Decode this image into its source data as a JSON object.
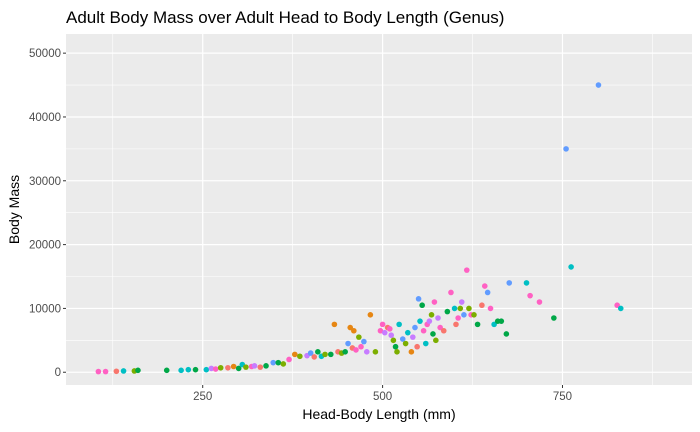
{
  "chart_data": {
    "type": "scatter",
    "title": "Adult Body Mass over Adult Head to Body Length (Genus)",
    "xlabel": "Head-Body Length (mm)",
    "ylabel": "Body Mass",
    "xlim": [
      60,
      930
    ],
    "ylim": [
      -2000,
      53000
    ],
    "xticks": [
      250,
      500,
      750
    ],
    "xtick_labels": [
      "250",
      "500",
      "750"
    ],
    "yticks": [
      0,
      10000,
      20000,
      30000,
      40000,
      50000
    ],
    "ytick_labels": [
      "0",
      "10000",
      "20000",
      "30000",
      "40000",
      "50000"
    ],
    "grid": true,
    "legend": "none",
    "colors": {
      "panel_bg": "#ebebeb",
      "grid_major": "#ffffff",
      "red": "#f8766d",
      "orange": "#e68613",
      "olive": "#7cae00",
      "green": "#00a747",
      "teal": "#00bfc4",
      "blue": "#619cff",
      "purple": "#c77cff",
      "pink": "#ff61c3"
    },
    "points": [
      {
        "x": 105,
        "y": 100,
        "c": "pink"
      },
      {
        "x": 115,
        "y": 100,
        "c": "pink"
      },
      {
        "x": 130,
        "y": 150,
        "c": "red"
      },
      {
        "x": 140,
        "y": 200,
        "c": "teal"
      },
      {
        "x": 155,
        "y": 200,
        "c": "olive"
      },
      {
        "x": 160,
        "y": 300,
        "c": "green"
      },
      {
        "x": 200,
        "y": 300,
        "c": "green"
      },
      {
        "x": 220,
        "y": 300,
        "c": "teal"
      },
      {
        "x": 230,
        "y": 400,
        "c": "teal"
      },
      {
        "x": 240,
        "y": 400,
        "c": "green"
      },
      {
        "x": 255,
        "y": 400,
        "c": "teal"
      },
      {
        "x": 262,
        "y": 600,
        "c": "purple"
      },
      {
        "x": 268,
        "y": 500,
        "c": "pink"
      },
      {
        "x": 275,
        "y": 700,
        "c": "olive"
      },
      {
        "x": 285,
        "y": 700,
        "c": "red"
      },
      {
        "x": 293,
        "y": 900,
        "c": "orange"
      },
      {
        "x": 300,
        "y": 600,
        "c": "green"
      },
      {
        "x": 305,
        "y": 1200,
        "c": "teal"
      },
      {
        "x": 310,
        "y": 800,
        "c": "olive"
      },
      {
        "x": 318,
        "y": 900,
        "c": "pink"
      },
      {
        "x": 322,
        "y": 1000,
        "c": "purple"
      },
      {
        "x": 330,
        "y": 800,
        "c": "red"
      },
      {
        "x": 338,
        "y": 1000,
        "c": "green"
      },
      {
        "x": 348,
        "y": 1500,
        "c": "blue"
      },
      {
        "x": 355,
        "y": 1500,
        "c": "green"
      },
      {
        "x": 362,
        "y": 1300,
        "c": "olive"
      },
      {
        "x": 370,
        "y": 2000,
        "c": "pink"
      },
      {
        "x": 378,
        "y": 2800,
        "c": "orange"
      },
      {
        "x": 385,
        "y": 2500,
        "c": "olive"
      },
      {
        "x": 395,
        "y": 2600,
        "c": "purple"
      },
      {
        "x": 400,
        "y": 3000,
        "c": "blue"
      },
      {
        "x": 405,
        "y": 2400,
        "c": "red"
      },
      {
        "x": 410,
        "y": 3200,
        "c": "green"
      },
      {
        "x": 415,
        "y": 2500,
        "c": "teal"
      },
      {
        "x": 420,
        "y": 2800,
        "c": "olive"
      },
      {
        "x": 428,
        "y": 2800,
        "c": "green"
      },
      {
        "x": 433,
        "y": 7500,
        "c": "orange"
      },
      {
        "x": 438,
        "y": 3200,
        "c": "red"
      },
      {
        "x": 443,
        "y": 3000,
        "c": "olive"
      },
      {
        "x": 448,
        "y": 3200,
        "c": "green"
      },
      {
        "x": 452,
        "y": 4500,
        "c": "blue"
      },
      {
        "x": 455,
        "y": 7000,
        "c": "orange"
      },
      {
        "x": 458,
        "y": 3800,
        "c": "red"
      },
      {
        "x": 460,
        "y": 6500,
        "c": "orange"
      },
      {
        "x": 463,
        "y": 3500,
        "c": "pink"
      },
      {
        "x": 467,
        "y": 5500,
        "c": "olive"
      },
      {
        "x": 470,
        "y": 4000,
        "c": "pink"
      },
      {
        "x": 474,
        "y": 4800,
        "c": "blue"
      },
      {
        "x": 478,
        "y": 3200,
        "c": "purple"
      },
      {
        "x": 483,
        "y": 9000,
        "c": "orange"
      },
      {
        "x": 490,
        "y": 3200,
        "c": "olive"
      },
      {
        "x": 497,
        "y": 6500,
        "c": "pink"
      },
      {
        "x": 500,
        "y": 7500,
        "c": "pink"
      },
      {
        "x": 503,
        "y": 6200,
        "c": "purple"
      },
      {
        "x": 507,
        "y": 7000,
        "c": "red"
      },
      {
        "x": 510,
        "y": 6800,
        "c": "pink"
      },
      {
        "x": 512,
        "y": 5800,
        "c": "purple"
      },
      {
        "x": 515,
        "y": 5000,
        "c": "olive"
      },
      {
        "x": 518,
        "y": 4000,
        "c": "green"
      },
      {
        "x": 520,
        "y": 3200,
        "c": "olive"
      },
      {
        "x": 523,
        "y": 7500,
        "c": "teal"
      },
      {
        "x": 528,
        "y": 5200,
        "c": "blue"
      },
      {
        "x": 532,
        "y": 4500,
        "c": "olive"
      },
      {
        "x": 535,
        "y": 6200,
        "c": "teal"
      },
      {
        "x": 540,
        "y": 3200,
        "c": "orange"
      },
      {
        "x": 542,
        "y": 5500,
        "c": "purple"
      },
      {
        "x": 545,
        "y": 7000,
        "c": "blue"
      },
      {
        "x": 548,
        "y": 4000,
        "c": "red"
      },
      {
        "x": 550,
        "y": 11500,
        "c": "blue"
      },
      {
        "x": 552,
        "y": 8000,
        "c": "teal"
      },
      {
        "x": 555,
        "y": 10500,
        "c": "green"
      },
      {
        "x": 557,
        "y": 6500,
        "c": "pink"
      },
      {
        "x": 560,
        "y": 4500,
        "c": "teal"
      },
      {
        "x": 562,
        "y": 7500,
        "c": "pink"
      },
      {
        "x": 565,
        "y": 8000,
        "c": "purple"
      },
      {
        "x": 568,
        "y": 9000,
        "c": "olive"
      },
      {
        "x": 570,
        "y": 6000,
        "c": "green"
      },
      {
        "x": 572,
        "y": 11000,
        "c": "pink"
      },
      {
        "x": 574,
        "y": 5000,
        "c": "olive"
      },
      {
        "x": 577,
        "y": 8500,
        "c": "purple"
      },
      {
        "x": 580,
        "y": 7000,
        "c": "pink"
      },
      {
        "x": 585,
        "y": 6500,
        "c": "red"
      },
      {
        "x": 590,
        "y": 9500,
        "c": "green"
      },
      {
        "x": 595,
        "y": 12500,
        "c": "pink"
      },
      {
        "x": 600,
        "y": 10000,
        "c": "teal"
      },
      {
        "x": 602,
        "y": 7500,
        "c": "red"
      },
      {
        "x": 605,
        "y": 8500,
        "c": "pink"
      },
      {
        "x": 608,
        "y": 10000,
        "c": "olive"
      },
      {
        "x": 610,
        "y": 11000,
        "c": "purple"
      },
      {
        "x": 613,
        "y": 9000,
        "c": "blue"
      },
      {
        "x": 617,
        "y": 16000,
        "c": "pink"
      },
      {
        "x": 620,
        "y": 10000,
        "c": "olive"
      },
      {
        "x": 623,
        "y": 9000,
        "c": "pink"
      },
      {
        "x": 627,
        "y": 9000,
        "c": "olive"
      },
      {
        "x": 632,
        "y": 7500,
        "c": "green"
      },
      {
        "x": 638,
        "y": 10500,
        "c": "red"
      },
      {
        "x": 642,
        "y": 13500,
        "c": "pink"
      },
      {
        "x": 646,
        "y": 12500,
        "c": "blue"
      },
      {
        "x": 650,
        "y": 10000,
        "c": "pink"
      },
      {
        "x": 655,
        "y": 7500,
        "c": "teal"
      },
      {
        "x": 660,
        "y": 8000,
        "c": "green"
      },
      {
        "x": 665,
        "y": 8000,
        "c": "green"
      },
      {
        "x": 672,
        "y": 6000,
        "c": "green"
      },
      {
        "x": 676,
        "y": 14000,
        "c": "blue"
      },
      {
        "x": 700,
        "y": 14000,
        "c": "teal"
      },
      {
        "x": 705,
        "y": 12000,
        "c": "pink"
      },
      {
        "x": 718,
        "y": 11000,
        "c": "pink"
      },
      {
        "x": 738,
        "y": 8500,
        "c": "green"
      },
      {
        "x": 755,
        "y": 35000,
        "c": "blue"
      },
      {
        "x": 762,
        "y": 16500,
        "c": "teal"
      },
      {
        "x": 800,
        "y": 45000,
        "c": "blue"
      },
      {
        "x": 826,
        "y": 10500,
        "c": "pink"
      },
      {
        "x": 831,
        "y": 10000,
        "c": "teal"
      }
    ]
  }
}
